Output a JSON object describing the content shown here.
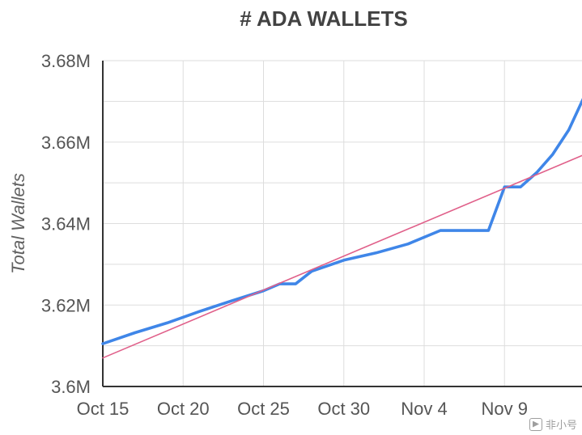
{
  "chart_data": {
    "type": "line",
    "title": "# ADA WALLETS",
    "ylabel": "Total Wallets",
    "xlabel": "",
    "x_ticks": [
      "Oct 15",
      "Oct 20",
      "Oct 25",
      "Oct 30",
      "Nov 4",
      "Nov 9"
    ],
    "y_ticks": [
      "3.6M",
      "3.62M",
      "3.64M",
      "3.66M",
      "3.68M"
    ],
    "ylim": [
      3600000,
      3680000
    ],
    "xlim": [
      "2020-10-15",
      "2020-11-13"
    ],
    "grid": true,
    "series": [
      {
        "color": "#3f86e8",
        "points": [
          [
            "2020-10-15",
            3610500
          ],
          [
            "2020-10-17",
            3613200
          ],
          [
            "2020-10-19",
            3615600
          ],
          [
            "2020-10-21",
            3618400
          ],
          [
            "2020-10-23",
            3621000
          ],
          [
            "2020-10-25",
            3623500
          ],
          [
            "2020-10-26",
            3625200
          ],
          [
            "2020-10-27",
            3625200
          ],
          [
            "2020-10-28",
            3628300
          ],
          [
            "2020-10-30",
            3631000
          ],
          [
            "2020-11-01",
            3632800
          ],
          [
            "2020-11-03",
            3635000
          ],
          [
            "2020-11-05",
            3638300
          ],
          [
            "2020-11-08",
            3638300
          ],
          [
            "2020-11-09",
            3649000
          ],
          [
            "2020-11-10",
            3649000
          ],
          [
            "2020-11-11",
            3652500
          ],
          [
            "2020-11-12",
            3657000
          ],
          [
            "2020-11-13",
            3663000
          ],
          [
            "2020-11-14",
            3671500
          ]
        ]
      },
      {
        "type": "trendline",
        "color": "#e0608a",
        "points": [
          [
            "2020-10-15",
            3607000
          ],
          [
            "2020-11-14",
            3657000
          ]
        ]
      }
    ]
  },
  "colors": {
    "grid": "#dddddd",
    "axis": "#333333",
    "background": "#ffffff"
  },
  "watermark": {
    "text": "非小号"
  }
}
